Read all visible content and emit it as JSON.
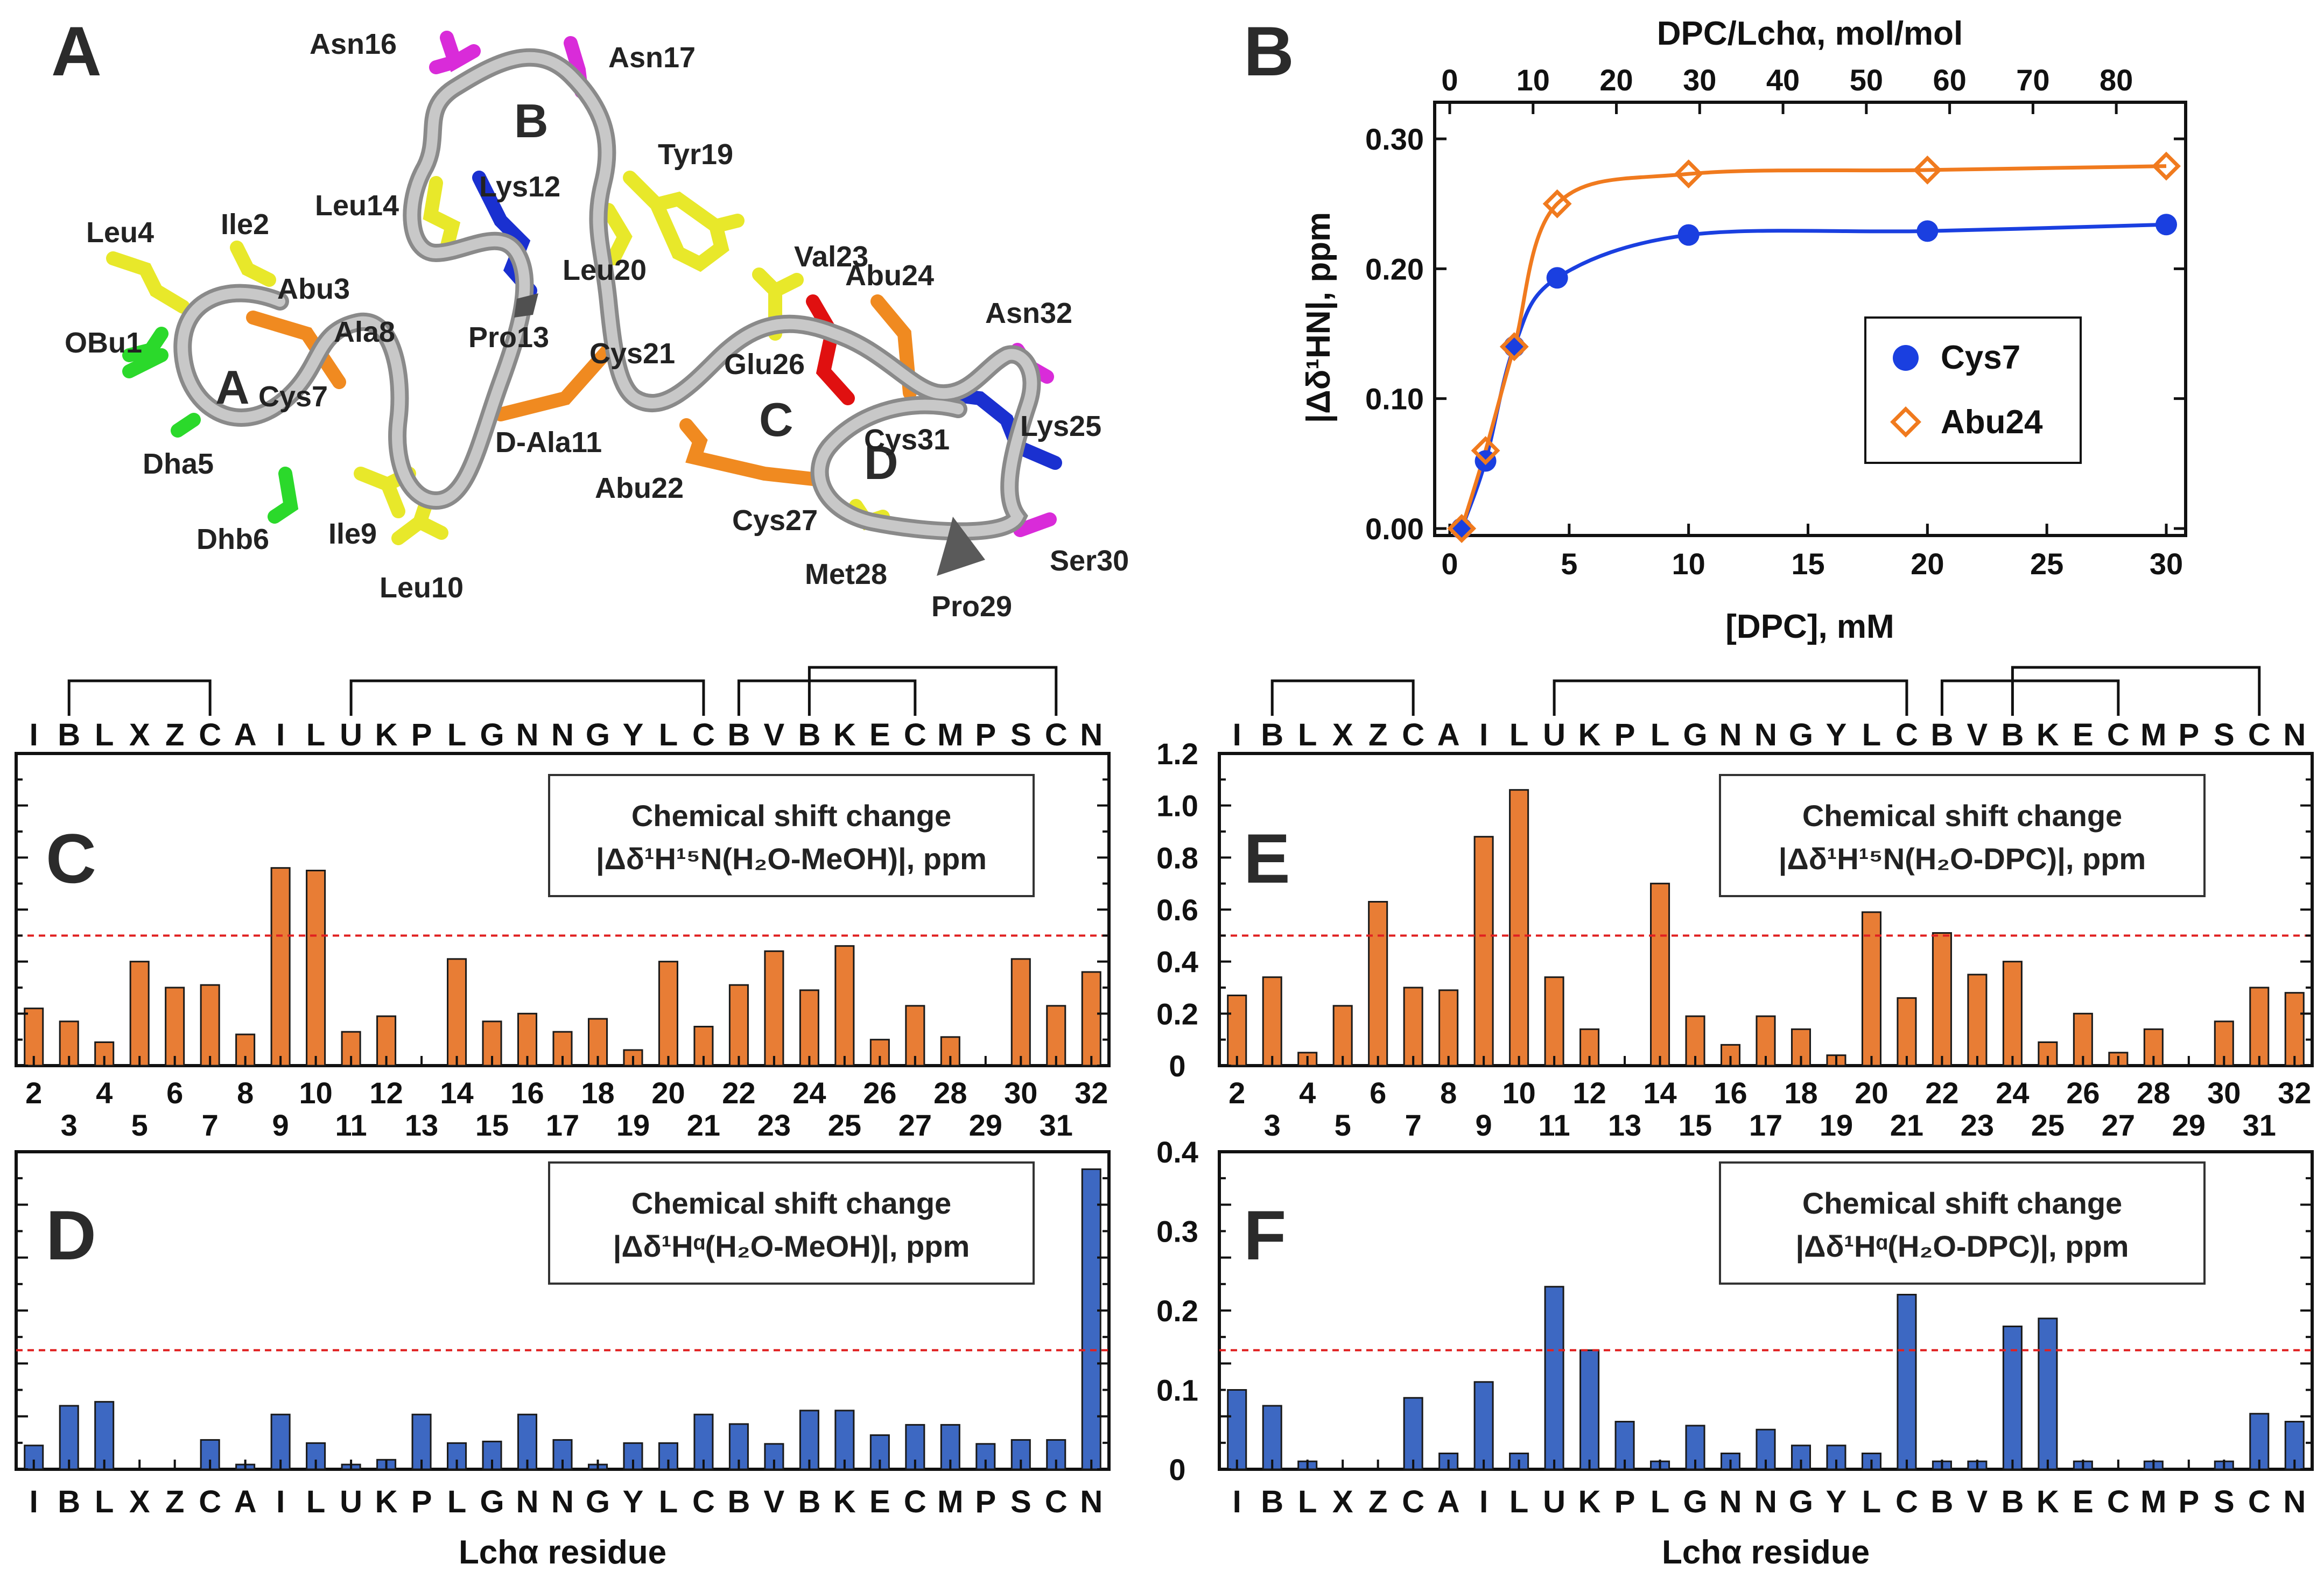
{
  "colors": {
    "orange_bar": "#E87D35",
    "blue_bar": "#3D68C2",
    "threshold": "#E02020",
    "cys7": "#1A3FE0",
    "abu24": "#F07A1E",
    "axis": "#111111"
  },
  "panel_labels": {
    "A": "A",
    "B": "B",
    "C": "C",
    "D": "D",
    "E": "E",
    "F": "F"
  },
  "structure": {
    "ring_labels": [
      "A",
      "B",
      "C",
      "D"
    ],
    "residue_labels": [
      "Asn16",
      "Asn17",
      "Tyr19",
      "Leu14",
      "Lys12",
      "Leu4",
      "Ile2",
      "Abu3",
      "Leu20",
      "Val23",
      "Abu24",
      "Asn32",
      "OBu1",
      "Ala8",
      "Pro13",
      "Cys7",
      "Cys21",
      "Glu26",
      "Cys31",
      "Lys25",
      "Dha5",
      "D-Ala11",
      "Abu22",
      "Dhb6",
      "Ile9",
      "Cys27",
      "Met28",
      "Ser30",
      "Leu10",
      "Pro29"
    ]
  },
  "sequence_letters": [
    "I",
    "B",
    "L",
    "X",
    "Z",
    "C",
    "A",
    "I",
    "L",
    "U",
    "K",
    "P",
    "L",
    "G",
    "N",
    "N",
    "G",
    "Y",
    "L",
    "C",
    "B",
    "V",
    "B",
    "K",
    "E",
    "C",
    "M",
    "P",
    "S",
    "C",
    "N"
  ],
  "residue_numbers": [
    2,
    3,
    4,
    5,
    6,
    7,
    8,
    9,
    10,
    11,
    12,
    13,
    14,
    15,
    16,
    17,
    18,
    19,
    20,
    21,
    22,
    23,
    24,
    25,
    26,
    27,
    28,
    29,
    30,
    31,
    32
  ],
  "x_axis_label": "Lchα residue",
  "chart_data": [
    {
      "panel": "B",
      "type": "line",
      "title": "",
      "xlabel": "[DPC], mM",
      "x2label": "DPC/Lchα, mol/mol",
      "ylabel": "|Δδ¹HN|, ppm",
      "xlim": [
        0,
        30
      ],
      "x2lim": [
        0,
        86
      ],
      "ylim": [
        0,
        0.32
      ],
      "xticks": [
        0,
        5,
        10,
        15,
        20,
        25,
        30
      ],
      "x2ticks": [
        0,
        10,
        20,
        30,
        40,
        50,
        60,
        70,
        80
      ],
      "yticks": [
        "0.00",
        "0.10",
        "0.20",
        "0.30"
      ],
      "legend_position": "center-right",
      "series": [
        {
          "name": "Cys7",
          "marker": "circle",
          "x": [
            0.5,
            1.5,
            2.7,
            4.5,
            10,
            20,
            30
          ],
          "y": [
            0.0,
            0.052,
            0.14,
            0.193,
            0.226,
            0.229,
            0.234
          ]
        },
        {
          "name": "Abu24",
          "marker": "diamond",
          "x": [
            0.5,
            1.5,
            2.7,
            4.5,
            10,
            20,
            30
          ],
          "y": [
            0.0,
            0.06,
            0.14,
            0.25,
            0.273,
            0.276,
            0.279
          ]
        }
      ]
    },
    {
      "panel": "C",
      "type": "bar",
      "box_line1": "Chemical shift change",
      "box_line2": "|Δδ¹H¹⁵N(H₂O-MeOH)|, ppm",
      "ylim": [
        0,
        1.2
      ],
      "threshold": 0.5,
      "categories": [
        2,
        3,
        4,
        5,
        6,
        7,
        8,
        9,
        10,
        11,
        12,
        13,
        14,
        15,
        16,
        17,
        18,
        19,
        20,
        21,
        22,
        23,
        24,
        25,
        26,
        27,
        28,
        29,
        30,
        31,
        32
      ],
      "values": [
        0.22,
        0.17,
        0.09,
        0.4,
        0.3,
        0.31,
        0.12,
        0.76,
        0.75,
        0.13,
        0.19,
        0,
        0.41,
        0.17,
        0.2,
        0.13,
        0.18,
        0.06,
        0.4,
        0.15,
        0.31,
        0.44,
        0.29,
        0.46,
        0.1,
        0.23,
        0.11,
        0,
        0.41,
        0.23,
        0.36
      ]
    },
    {
      "panel": "E",
      "type": "bar",
      "box_line1": "Chemical shift change",
      "box_line2": "|Δδ¹H¹⁵N(H₂O-DPC)|, ppm",
      "ylim": [
        0,
        1.2
      ],
      "yticks": [
        "0",
        "0.2",
        "0.4",
        "0.6",
        "0.8",
        "1.0",
        "1.2"
      ],
      "threshold": 0.5,
      "categories": [
        2,
        3,
        4,
        5,
        6,
        7,
        8,
        9,
        10,
        11,
        12,
        13,
        14,
        15,
        16,
        17,
        18,
        19,
        20,
        21,
        22,
        23,
        24,
        25,
        26,
        27,
        28,
        29,
        30,
        31,
        32
      ],
      "values": [
        0.27,
        0.34,
        0.05,
        0.23,
        0.63,
        0.3,
        0.29,
        0.88,
        1.06,
        0.34,
        0.14,
        0,
        0.7,
        0.19,
        0.08,
        0.19,
        0.14,
        0.04,
        0.59,
        0.26,
        0.51,
        0.35,
        0.4,
        0.09,
        0.2,
        0.05,
        0.14,
        0,
        0.17,
        0.3,
        0.28
      ]
    },
    {
      "panel": "D",
      "type": "bar",
      "box_line1": "Chemical shift change",
      "box_line2": "|Δδ¹Hᵅ(H₂O-MeOH)|, ppm",
      "ylim": [
        0,
        0.4
      ],
      "threshold": 0.15,
      "categories": [
        "I",
        "B",
        "L",
        "X",
        "Z",
        "C",
        "A",
        "I",
        "L",
        "U",
        "K",
        "P",
        "L",
        "G",
        "N",
        "N",
        "G",
        "Y",
        "L",
        "C",
        "B",
        "V",
        "B",
        "K",
        "E",
        "C",
        "M",
        "P",
        "S",
        "C",
        "N"
      ],
      "values": [
        0.03,
        0.08,
        0.085,
        0,
        0,
        0.037,
        0.006,
        0.069,
        0.033,
        0.006,
        0.012,
        0.069,
        0.033,
        0.035,
        0.069,
        0.037,
        0.006,
        0.033,
        0.033,
        0.069,
        0.057,
        0.032,
        0.074,
        0.074,
        0.043,
        0.056,
        0.056,
        0.032,
        0.037,
        0.037,
        0.378
      ]
    },
    {
      "panel": "F",
      "type": "bar",
      "box_line1": "Chemical shift change",
      "box_line2": "|Δδ¹Hᵅ(H₂O-DPC)|, ppm",
      "ylim": [
        0,
        0.4
      ],
      "yticks": [
        "0",
        "0.1",
        "0.2",
        "0.3",
        "0.4"
      ],
      "threshold": 0.15,
      "categories": [
        "I",
        "B",
        "L",
        "X",
        "Z",
        "C",
        "A",
        "I",
        "L",
        "U",
        "K",
        "P",
        "L",
        "G",
        "N",
        "N",
        "G",
        "Y",
        "L",
        "C",
        "B",
        "V",
        "B",
        "K",
        "E",
        "C",
        "M",
        "P",
        "S",
        "C",
        "N"
      ],
      "values": [
        0.1,
        0.08,
        0.01,
        0,
        0,
        0.09,
        0.02,
        0.11,
        0.02,
        0.23,
        0.15,
        0.06,
        0.01,
        0.055,
        0.02,
        0.05,
        0.03,
        0.03,
        0.02,
        0.22,
        0.01,
        0.01,
        0.18,
        0.19,
        0.01,
        0,
        0.01,
        0,
        0.01,
        0.07,
        0.06
      ]
    }
  ]
}
